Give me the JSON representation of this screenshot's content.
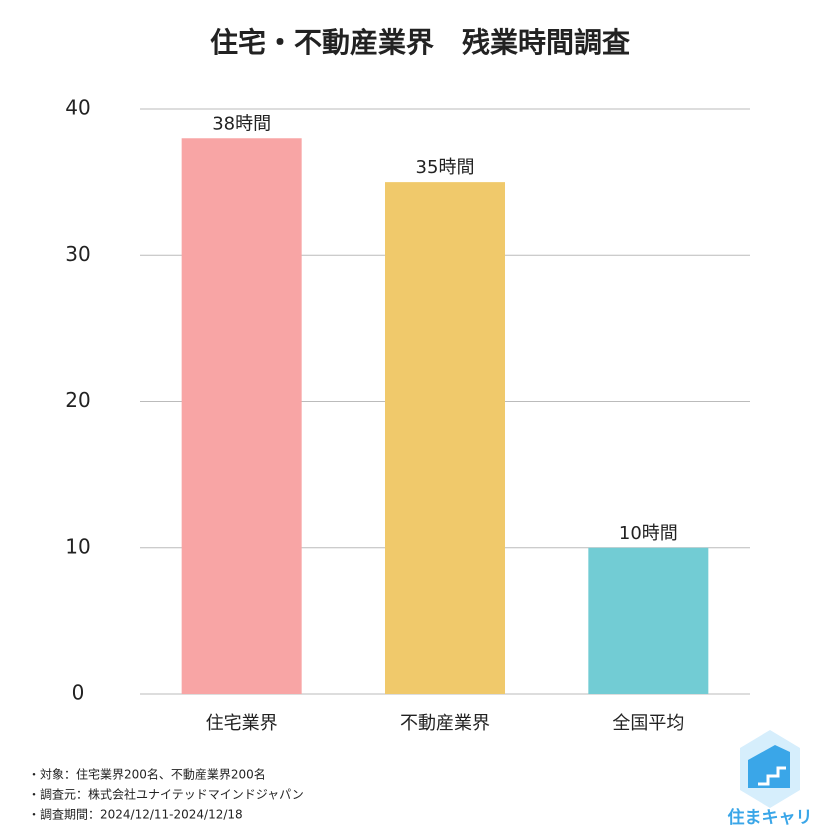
{
  "chart_data": {
    "type": "bar",
    "title": "住宅・不動産業界　残業時間調査",
    "categories": [
      "住宅業界",
      "不動産業界",
      "全国平均"
    ],
    "values": [
      38,
      35,
      10
    ],
    "value_labels": [
      "38時間",
      "35時間",
      "10時間"
    ],
    "colors": [
      "#f8a5a5",
      "#f0c96b",
      "#72ccd4"
    ],
    "ylim": [
      0,
      40
    ],
    "yticks": [
      0,
      10,
      20,
      30,
      40
    ],
    "grid": true
  },
  "notes": [
    "・対象：住宅業界200名、不動産業界200名",
    "・調査元：株式会社ユナイテッドマインドジャパン",
    "・調査期間：2024/12/11-2024/12/18"
  ],
  "logo": "住まキャリ"
}
